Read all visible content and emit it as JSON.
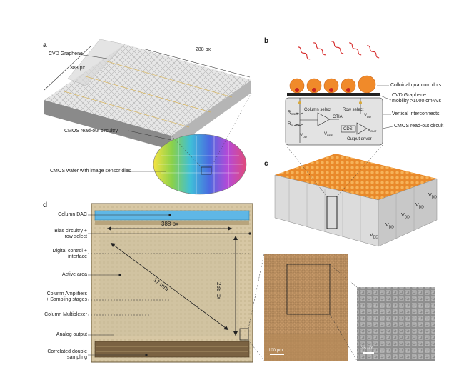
{
  "panels": {
    "a": "a",
    "b": "b",
    "c": "c",
    "d": "d"
  },
  "panel_a": {
    "graphene": "CVD Graphene",
    "dim_width": "288 px",
    "dim_height": "388 px",
    "readout": "CMOS read-out circuitry",
    "wafer": "CMOS wafer with image sensor dies"
  },
  "panel_b": {
    "qdots": "Colloidal quantum dots",
    "graphene_line1": "CVD Graphene:",
    "graphene_line2": "mobility >1000 cm²/Vs",
    "vertical": "Vertical interconnects",
    "readout": "CMOS read-out circuit",
    "col_select": "Column select",
    "row_select": "Row select",
    "ctia": "CTIA",
    "cds": "CDS",
    "output_driver": "Output driver",
    "r_comp": "R",
    "r_comp_sub": "COMP",
    "r_bias": "R",
    "r_bias_sub": "BL.INT",
    "vdd": "V",
    "vdd_sub": "DD",
    "vref": "V",
    "vref_sub": "REF",
    "vout": "V",
    "vout_sub": "OUT",
    "vdd2": "V",
    "vdd2_sub": "DD"
  },
  "panel_c": {
    "labels": [
      "V",
      "V",
      "V",
      "V",
      "V"
    ],
    "subs": [
      "DD",
      "DD",
      "DD",
      "DD",
      "DD"
    ]
  },
  "panel_d": {
    "column_dac": "Column DAC",
    "bias_line1": "Bias circuitry +",
    "bias_line2": "row select",
    "digital_line1": "Digital control +",
    "digital_line2": "interface",
    "active": "Active area",
    "amp_line1": "Column Amplifiers",
    "amp_line2": "+ Sampling stages",
    "mux": "Column Multiplexer",
    "analog": "Analog output",
    "cds_line1": "Correlated double",
    "cds_line2": "sampling",
    "dim_width": "388 px",
    "dim_height": "288 px",
    "diagonal": "17 mm",
    "scale1": "100 μm",
    "scale2": "35 μm"
  },
  "colors": {
    "qdot": "#f08a2a",
    "graphene": "#cfcfcf",
    "chip_bg": "#d9c9a8",
    "dac": "#5fb7e6",
    "wave": "#d62a2a"
  }
}
